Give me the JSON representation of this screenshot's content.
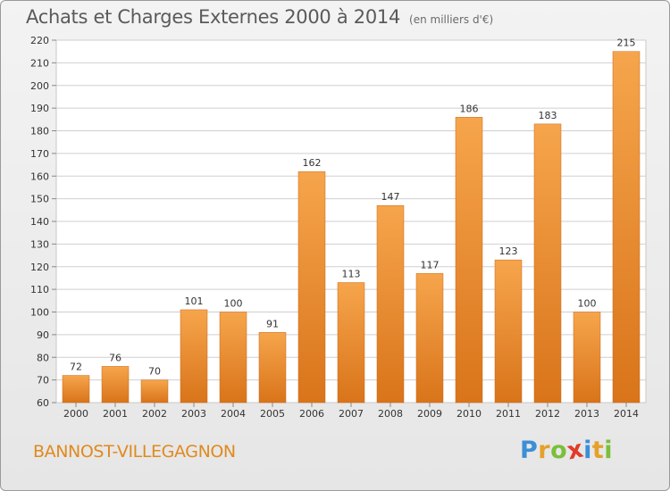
{
  "title": "Achats et Charges Externes 2000 à 2014",
  "subtitle": "(en milliers d'€)",
  "commune": "BANNOST-VILLEGAGNON",
  "logo": {
    "letters": [
      {
        "char": "P",
        "color": "#3b8fd6"
      },
      {
        "char": "r",
        "color": "#e5a12b"
      },
      {
        "char": "o",
        "color": "#7bbf3a"
      },
      {
        "char": "x",
        "color": "#e23a2a"
      },
      {
        "char": "i",
        "color": "#3b8fd6"
      },
      {
        "char": "t",
        "color": "#e5a12b"
      },
      {
        "char": "i",
        "color": "#7bbf3a"
      }
    ]
  },
  "colors": {
    "bar_light": "#f6a54c",
    "bar_dark": "#d9741a",
    "grid": "#cfcfcf",
    "text": "#333333"
  },
  "chart_data": {
    "type": "bar",
    "categories": [
      "2000",
      "2001",
      "2002",
      "2003",
      "2004",
      "2005",
      "2006",
      "2007",
      "2008",
      "2009",
      "2010",
      "2011",
      "2012",
      "2013",
      "2014"
    ],
    "values": [
      72,
      76,
      70,
      101,
      100,
      91,
      162,
      113,
      147,
      117,
      186,
      123,
      183,
      100,
      215
    ],
    "ylim": [
      60,
      220
    ],
    "ytick_step": 10,
    "grid": true
  }
}
